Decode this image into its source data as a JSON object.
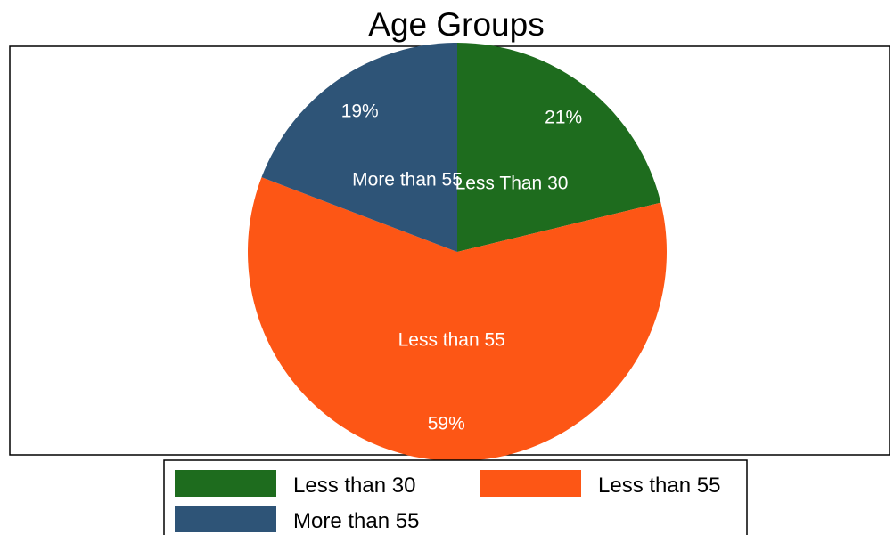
{
  "chart_data": {
    "type": "pie",
    "title": "Age Groups",
    "slices": [
      {
        "label": "Less Than 30",
        "value": 21,
        "value_label": "21%",
        "color": "#1e6c1e"
      },
      {
        "label": "Less than 55",
        "value": 59,
        "value_label": "59%",
        "color": "#fd5615"
      },
      {
        "label": "More than 55",
        "value": 19,
        "value_label": "19%",
        "color": "#2e5477"
      }
    ],
    "start_angle_deg": 0,
    "direction": "clockwise",
    "legend": {
      "placement": "bottom",
      "entries": [
        {
          "label": "Less than 30",
          "color": "#1e6c1e"
        },
        {
          "label": "Less than 55",
          "color": "#fd5615"
        },
        {
          "label": "More than 55",
          "color": "#2e5477"
        }
      ]
    }
  }
}
